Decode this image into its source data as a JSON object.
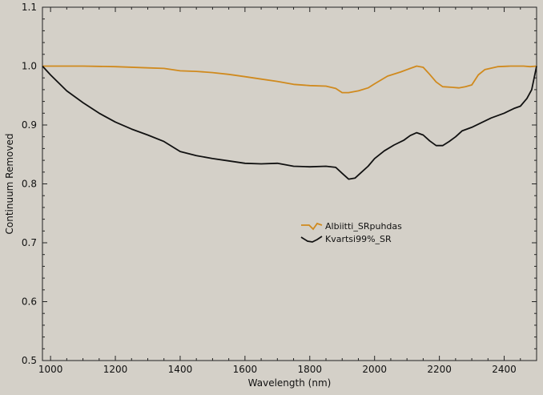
{
  "chart_data": {
    "type": "line",
    "title": "",
    "xlabel": "Wavelength (nm)",
    "ylabel": "Continuum Removed",
    "xlim": [
      975,
      2500
    ],
    "ylim": [
      0.5,
      1.1
    ],
    "x_ticks": [
      1000,
      1200,
      1400,
      1600,
      1800,
      2000,
      2200,
      2400
    ],
    "y_ticks": [
      0.5,
      0.6,
      0.7,
      0.8,
      0.9,
      1.0,
      1.1
    ],
    "x_tick_labels": [
      "1000",
      "1200",
      "1400",
      "1600",
      "1800",
      "2000",
      "2200",
      "2400"
    ],
    "y_tick_labels": [
      "0.5",
      "0.6",
      "0.7",
      "0.8",
      "0.9",
      "1.0",
      "1.1"
    ],
    "grid": false,
    "legend_position": "center-right",
    "background": "#d4d0c8",
    "series": [
      {
        "name": "Albiitti_SRpuhdas",
        "color": "#d08a1e",
        "x": [
          975,
          1100,
          1200,
          1300,
          1350,
          1400,
          1450,
          1500,
          1550,
          1600,
          1650,
          1700,
          1750,
          1800,
          1850,
          1880,
          1900,
          1920,
          1950,
          1980,
          2000,
          2040,
          2080,
          2110,
          2130,
          2150,
          2170,
          2190,
          2210,
          2240,
          2260,
          2280,
          2300,
          2320,
          2340,
          2380,
          2420,
          2460,
          2480,
          2500
        ],
        "y": [
          1.0,
          1.0,
          0.999,
          0.997,
          0.996,
          0.992,
          0.991,
          0.989,
          0.986,
          0.982,
          0.978,
          0.974,
          0.969,
          0.967,
          0.966,
          0.962,
          0.955,
          0.955,
          0.958,
          0.963,
          0.97,
          0.983,
          0.99,
          0.996,
          1.0,
          0.998,
          0.986,
          0.973,
          0.965,
          0.964,
          0.963,
          0.965,
          0.968,
          0.985,
          0.994,
          0.999,
          1.0,
          1.0,
          0.999,
          1.0
        ]
      },
      {
        "name": "Kvartsi99%_SR",
        "color": "#111111",
        "x": [
          975,
          1000,
          1050,
          1100,
          1150,
          1200,
          1250,
          1300,
          1350,
          1400,
          1450,
          1500,
          1550,
          1600,
          1650,
          1700,
          1750,
          1800,
          1850,
          1880,
          1900,
          1920,
          1940,
          1960,
          1980,
          2000,
          2030,
          2060,
          2090,
          2110,
          2130,
          2150,
          2170,
          2190,
          2210,
          2230,
          2250,
          2270,
          2300,
          2330,
          2360,
          2400,
          2430,
          2450,
          2470,
          2485,
          2500
        ],
        "y": [
          1.0,
          0.985,
          0.958,
          0.938,
          0.92,
          0.905,
          0.893,
          0.883,
          0.872,
          0.855,
          0.848,
          0.843,
          0.839,
          0.835,
          0.834,
          0.835,
          0.83,
          0.829,
          0.83,
          0.828,
          0.818,
          0.808,
          0.81,
          0.82,
          0.83,
          0.843,
          0.856,
          0.866,
          0.874,
          0.882,
          0.887,
          0.883,
          0.873,
          0.865,
          0.865,
          0.872,
          0.88,
          0.89,
          0.896,
          0.904,
          0.912,
          0.92,
          0.928,
          0.932,
          0.945,
          0.96,
          1.0
        ]
      }
    ]
  }
}
